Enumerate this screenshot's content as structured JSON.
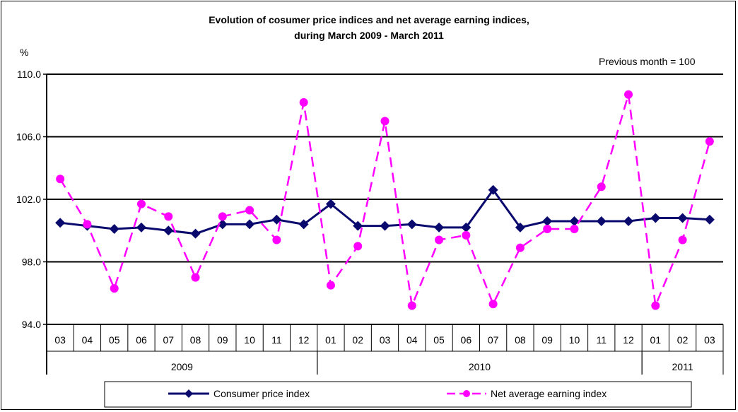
{
  "chart_data": {
    "type": "line",
    "title": [
      "Evolution of cosumer price indices and net average earning indices,",
      "during March 2009 - March 2011"
    ],
    "ylabel": "%",
    "note": "Previous month = 100",
    "ylim": [
      94.0,
      110.0
    ],
    "yticks": [
      "94.0",
      "98.0",
      "102.0",
      "106.0",
      "110.0"
    ],
    "grid": true,
    "categories": [
      "03",
      "04",
      "05",
      "06",
      "07",
      "08",
      "09",
      "10",
      "11",
      "12",
      "01",
      "02",
      "03",
      "04",
      "05",
      "06",
      "07",
      "08",
      "09",
      "10",
      "11",
      "12",
      "01",
      "02",
      "03"
    ],
    "years": [
      {
        "label": "2009",
        "start": 0,
        "end": 9
      },
      {
        "label": "2010",
        "start": 10,
        "end": 21
      },
      {
        "label": "2011",
        "start": 22,
        "end": 24
      }
    ],
    "legend_position": "bottom",
    "series": [
      {
        "name": "Consumer price index",
        "color": "#0a0a6e",
        "marker": "diamond",
        "dash": false,
        "values": [
          100.5,
          100.3,
          100.1,
          100.2,
          100.0,
          99.8,
          100.4,
          100.4,
          100.7,
          100.4,
          101.7,
          100.3,
          100.3,
          100.4,
          100.2,
          100.2,
          102.6,
          100.2,
          100.6,
          100.6,
          100.6,
          100.6,
          100.8,
          100.8,
          100.7
        ]
      },
      {
        "name": "Net average earning index",
        "color": "#ff00ff",
        "marker": "circle",
        "dash": true,
        "values": [
          103.3,
          100.4,
          96.3,
          101.7,
          100.9,
          97.0,
          100.9,
          101.3,
          99.4,
          108.2,
          96.5,
          99.0,
          107.0,
          95.2,
          99.4,
          99.7,
          95.3,
          98.9,
          100.1,
          100.1,
          102.8,
          108.7,
          95.2,
          99.4,
          105.7
        ]
      }
    ]
  }
}
